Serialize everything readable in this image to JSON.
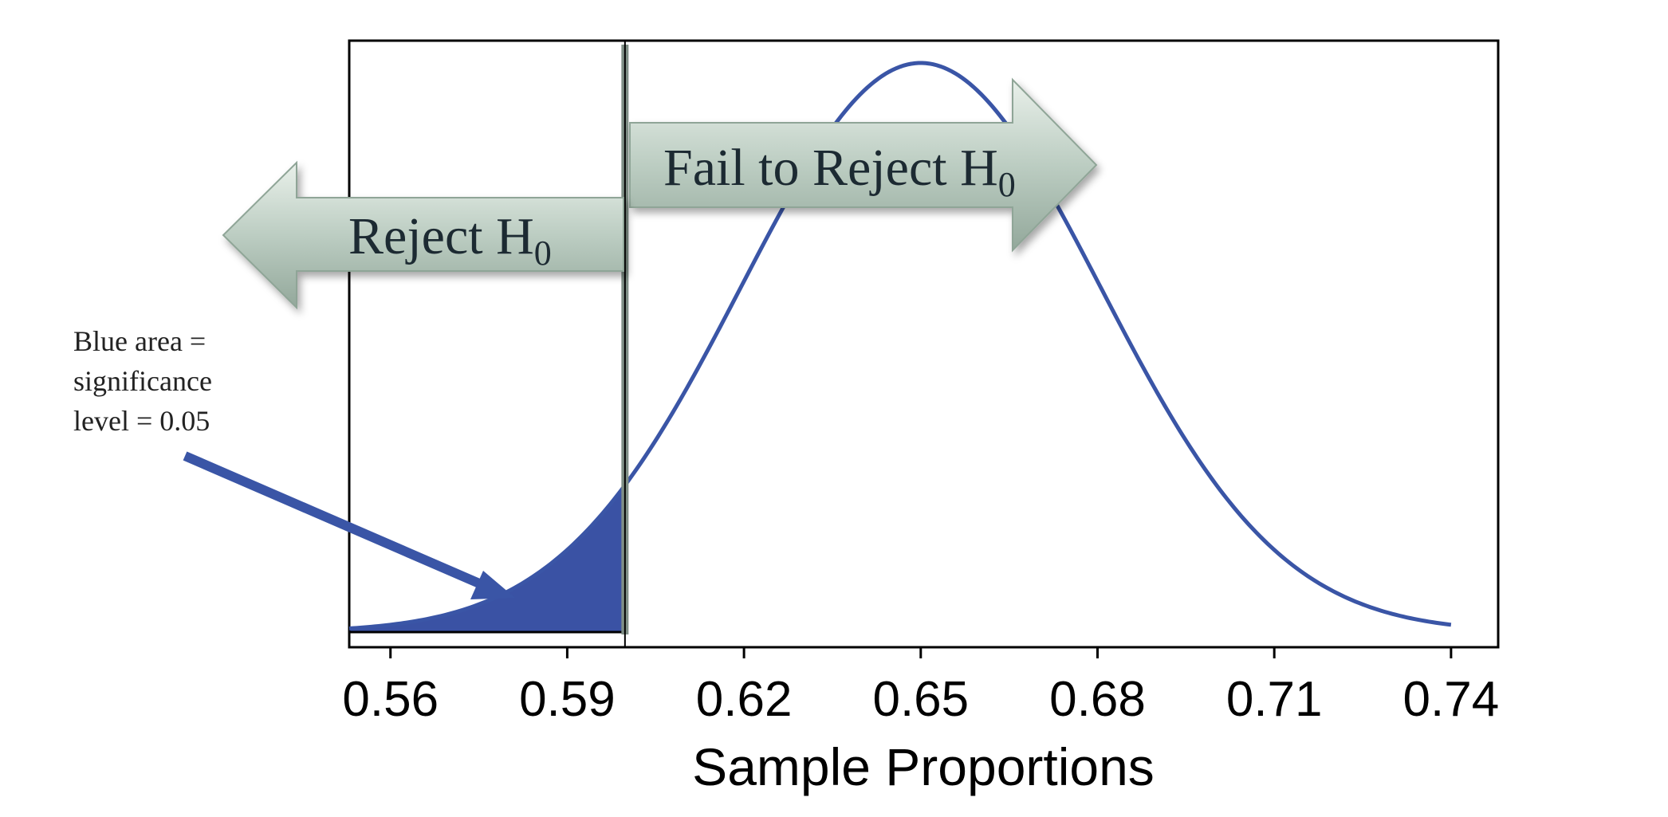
{
  "chart_data": {
    "type": "area",
    "xlabel": "Sample Proportions",
    "xticks": [
      "0.56",
      "0.59",
      "0.62",
      "0.65",
      "0.68",
      "0.71",
      "0.74"
    ],
    "xlim": [
      0.553,
      0.748
    ],
    "distribution": {
      "kind": "normal",
      "mean": 0.65,
      "sd": 0.0305
    },
    "curve_range": [
      0.553,
      0.74
    ],
    "critical_value": 0.5998,
    "shaded_region": {
      "from": 0.553,
      "to": 0.5998
    },
    "colors": {
      "curve": "#3a55a6",
      "shade": "#3a52a4",
      "arrow_fill": "#b9cbbf",
      "critical_line": "#7f8f86"
    },
    "reject_label": {
      "text": "Reject H",
      "sub": "0"
    },
    "fail_label": {
      "text": "Fail to Reject H",
      "sub": "0"
    },
    "annotation": {
      "lines": [
        "Blue area =",
        "significance",
        "level = 0.05"
      ]
    }
  }
}
